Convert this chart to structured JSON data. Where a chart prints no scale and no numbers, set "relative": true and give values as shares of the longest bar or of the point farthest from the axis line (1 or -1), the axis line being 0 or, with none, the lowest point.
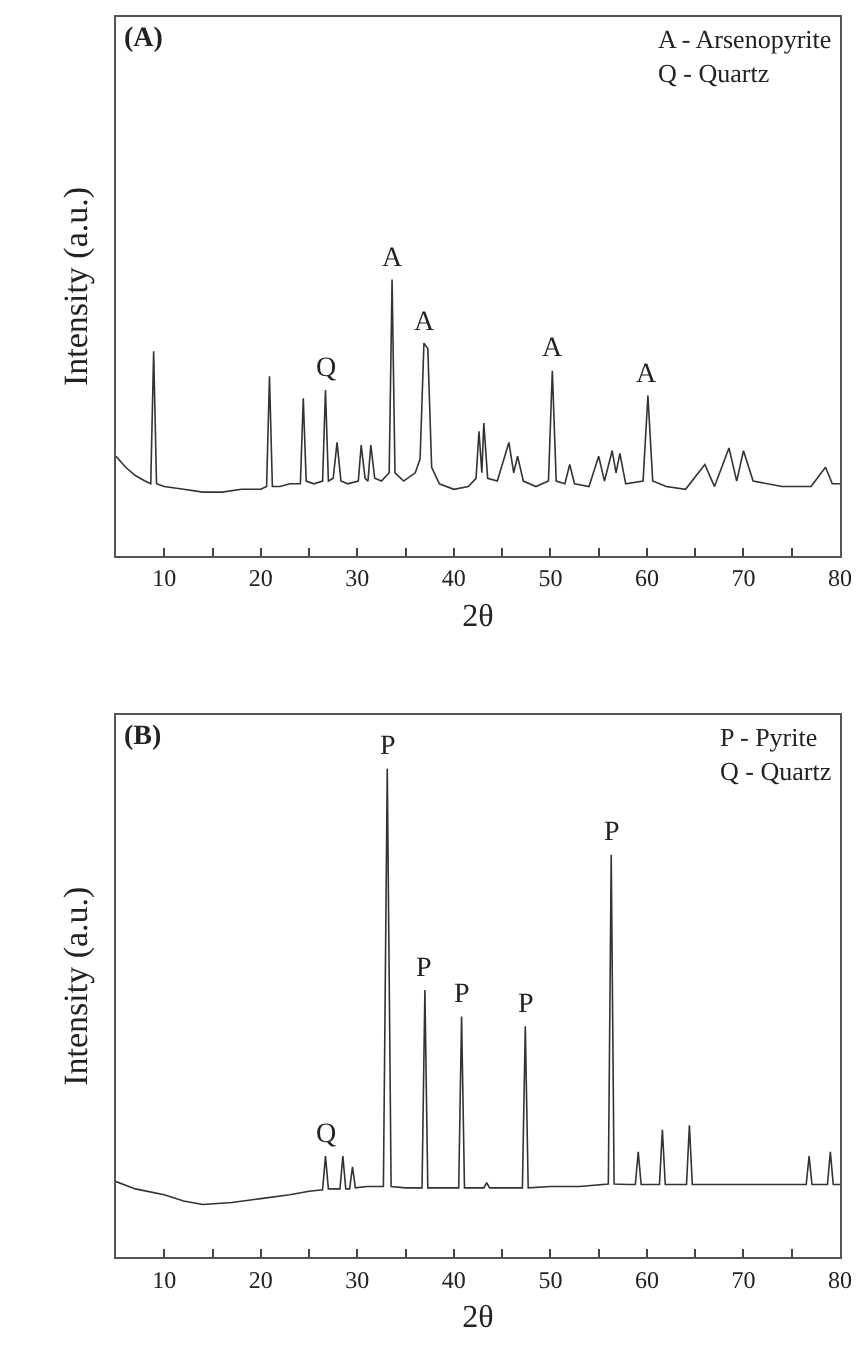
{
  "chart_data": [
    {
      "type": "line",
      "title": "(A)",
      "xlabel": "2θ",
      "ylabel": "Intensity (a.u.)",
      "relative": true,
      "marker": "none",
      "line_style": "solid",
      "xlim": [
        5,
        80
      ],
      "xticks": [
        {
          "value": 5,
          "label": null
        },
        10,
        {
          "value": 15,
          "label": null
        },
        20,
        {
          "value": 25,
          "label": null
        },
        30,
        {
          "value": 35,
          "label": null
        },
        40,
        {
          "value": 45,
          "label": null
        },
        50,
        {
          "value": 55,
          "label": null
        },
        60,
        {
          "value": 65,
          "label": null
        },
        70,
        {
          "value": 75,
          "label": null
        },
        80
      ],
      "series": [
        {
          "color": "#333333",
          "x": [
            5,
            6,
            7,
            8,
            8.6,
            8.9,
            9.2,
            10,
            12,
            14,
            16,
            18,
            20,
            20.6,
            20.9,
            21.2,
            22,
            23,
            24.1,
            24.4,
            24.7,
            25.5,
            26.4,
            26.7,
            27.0,
            27.5,
            27.9,
            28.3,
            29,
            30.1,
            30.4,
            30.8,
            31.1,
            31.4,
            31.8,
            32.5,
            33.3,
            33.6,
            33.9,
            34.8,
            36.0,
            36.5,
            36.9,
            37.3,
            37.7,
            38.5,
            40,
            41.5,
            42.3,
            42.6,
            42.9,
            43.1,
            43.5,
            44.5,
            45.7,
            46.2,
            46.6,
            47.2,
            48.5,
            49.8,
            50.2,
            50.6,
            51.5,
            52.0,
            52.5,
            54,
            55.0,
            55.6,
            56.4,
            56.8,
            57.2,
            57.8,
            59.6,
            60.1,
            60.6,
            62,
            64,
            66.0,
            67,
            68.5,
            69.3,
            70.0,
            71,
            74,
            77,
            78.5,
            79.2,
            80
          ],
          "values": [
            0.36,
            0.32,
            0.29,
            0.27,
            0.26,
            0.74,
            0.26,
            0.25,
            0.24,
            0.23,
            0.23,
            0.24,
            0.24,
            0.25,
            0.65,
            0.25,
            0.25,
            0.26,
            0.26,
            0.57,
            0.27,
            0.26,
            0.27,
            0.6,
            0.27,
            0.28,
            0.41,
            0.27,
            0.26,
            0.27,
            0.4,
            0.28,
            0.27,
            0.4,
            0.28,
            0.27,
            0.3,
            1.0,
            0.3,
            0.27,
            0.3,
            0.35,
            0.77,
            0.75,
            0.32,
            0.26,
            0.24,
            0.25,
            0.28,
            0.45,
            0.3,
            0.48,
            0.28,
            0.27,
            0.41,
            0.3,
            0.36,
            0.27,
            0.25,
            0.27,
            0.67,
            0.27,
            0.26,
            0.33,
            0.26,
            0.25,
            0.36,
            0.27,
            0.38,
            0.3,
            0.37,
            0.26,
            0.27,
            0.58,
            0.27,
            0.25,
            0.24,
            0.33,
            0.25,
            0.39,
            0.27,
            0.38,
            0.27,
            0.25,
            0.25,
            0.32,
            0.26,
            0.26
          ]
        }
      ],
      "annotations": [
        {
          "text": "A",
          "x": 33.6,
          "y": 1.0
        },
        {
          "text": "A",
          "x": 37.1,
          "y": 0.77
        },
        {
          "text": "A",
          "x": 50.2,
          "y": 0.67
        },
        {
          "text": "A",
          "x": 60.1,
          "y": 0.58
        },
        {
          "text": "Q",
          "x": 26.7,
          "y": 0.6
        },
        "A - Arsenopyrite\nQ - Quartz"
      ]
    },
    {
      "type": "line",
      "title": "(B)",
      "xlabel": "2θ",
      "ylabel": "Intensity (a.u.)",
      "relative": true,
      "marker": "none",
      "line_style": "solid",
      "xlim": [
        5,
        80
      ],
      "xticks": [
        {
          "value": 5,
          "label": null
        },
        10,
        {
          "value": 15,
          "label": null
        },
        20,
        {
          "value": 25,
          "label": null
        },
        30,
        {
          "value": 35,
          "label": null
        },
        40,
        {
          "value": 45,
          "label": null
        },
        50,
        {
          "value": 55,
          "label": null
        },
        60,
        {
          "value": 65,
          "label": null
        },
        70,
        {
          "value": 75,
          "label": null
        },
        80
      ],
      "series": [
        {
          "color": "#333333",
          "x": [
            5,
            7,
            10,
            12,
            14,
            17,
            20,
            23,
            25,
            26.4,
            26.7,
            27.0,
            28.2,
            28.5,
            28.8,
            29.2,
            29.5,
            29.8,
            31,
            32.7,
            33.1,
            33.5,
            35,
            36.7,
            37.0,
            37.3,
            39,
            40.5,
            40.8,
            41.1,
            43.1,
            43.4,
            43.7,
            45,
            47.1,
            47.4,
            47.7,
            50,
            53,
            56.0,
            56.3,
            56.6,
            58,
            58.8,
            59.1,
            59.4,
            61.3,
            61.6,
            61.9,
            64.1,
            64.4,
            64.7,
            67,
            70,
            73,
            76.5,
            76.8,
            77.1,
            78.7,
            79.0,
            79.3,
            80
          ],
          "values": [
            0.155,
            0.14,
            0.128,
            0.115,
            0.108,
            0.112,
            0.12,
            0.128,
            0.135,
            0.138,
            0.207,
            0.14,
            0.14,
            0.207,
            0.14,
            0.14,
            0.185,
            0.142,
            0.145,
            0.145,
            1.0,
            0.145,
            0.142,
            0.142,
            0.547,
            0.142,
            0.142,
            0.142,
            0.493,
            0.142,
            0.142,
            0.153,
            0.142,
            0.142,
            0.142,
            0.473,
            0.142,
            0.145,
            0.145,
            0.15,
            0.824,
            0.15,
            0.149,
            0.149,
            0.216,
            0.149,
            0.149,
            0.261,
            0.149,
            0.149,
            0.27,
            0.149,
            0.149,
            0.149,
            0.149,
            0.149,
            0.207,
            0.149,
            0.149,
            0.216,
            0.149,
            0.149
          ]
        }
      ],
      "annotations": [
        {
          "text": "P",
          "x": 33.1,
          "y": 1.0
        },
        {
          "text": "P",
          "x": 37.0,
          "y": 0.547
        },
        {
          "text": "P",
          "x": 40.8,
          "y": 0.493
        },
        {
          "text": "P",
          "x": 47.4,
          "y": 0.473
        },
        {
          "text": "P",
          "x": 56.3,
          "y": 0.824
        },
        {
          "text": "Q",
          "x": 26.7,
          "y": 0.207
        },
        "P - Pyrite\nQ - Quartz"
      ]
    }
  ]
}
